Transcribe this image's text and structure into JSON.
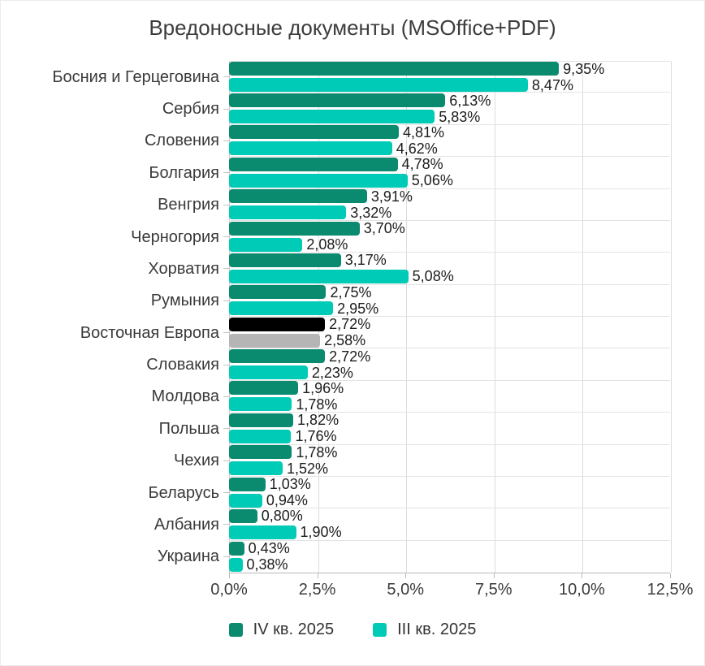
{
  "page": {
    "background": "#ffffff",
    "border_color": "#ececec",
    "grid_color": "#dcdcdc",
    "axis_color": "#b9b9b9",
    "text_color": "#3a3a3a"
  },
  "chart_data": {
    "type": "bar",
    "orientation": "horizontal",
    "grouped": true,
    "title": "Вредоносные документы (MSOffice+PDF)",
    "xlabel": "",
    "ylabel": "",
    "xlim": [
      0,
      12.5
    ],
    "grid": true,
    "legend_position": "bottom",
    "series": [
      {
        "name": "IV кв. 2025",
        "color": "#0a8a6e"
      },
      {
        "name": "III кв. 2025",
        "color": "#00cbb7"
      }
    ],
    "highlight_colors": [
      "#000000",
      "#b5b5b5"
    ],
    "x_ticks": [
      {
        "value": 0,
        "label": "0,0%"
      },
      {
        "value": 2.5,
        "label": "2,5%"
      },
      {
        "value": 5,
        "label": "5,0%"
      },
      {
        "value": 7.5,
        "label": "7,5%"
      },
      {
        "value": 10,
        "label": "10,0%"
      },
      {
        "value": 12.5,
        "label": "12,5%"
      }
    ],
    "rows": [
      {
        "category": "Босния и Герцеговина",
        "values": [
          9.35,
          8.47
        ],
        "labels": [
          "9,35%",
          "8,47%"
        ]
      },
      {
        "category": "Сербия",
        "values": [
          6.13,
          5.83
        ],
        "labels": [
          "6,13%",
          "5,83%"
        ]
      },
      {
        "category": "Словения",
        "values": [
          4.81,
          4.62
        ],
        "labels": [
          "4,81%",
          "4,62%"
        ]
      },
      {
        "category": "Болгария",
        "values": [
          4.78,
          5.06
        ],
        "labels": [
          "4,78%",
          "5,06%"
        ]
      },
      {
        "category": "Венгрия",
        "values": [
          3.91,
          3.32
        ],
        "labels": [
          "3,91%",
          "3,32%"
        ]
      },
      {
        "category": "Черногория",
        "values": [
          3.7,
          2.08
        ],
        "labels": [
          "3,70%",
          "2,08%"
        ]
      },
      {
        "category": "Хорватия",
        "values": [
          3.17,
          5.08
        ],
        "labels": [
          "3,17%",
          "5,08%"
        ]
      },
      {
        "category": "Румыния",
        "values": [
          2.75,
          2.95
        ],
        "labels": [
          "2,75%",
          "2,95%"
        ]
      },
      {
        "category": "Восточная Европа",
        "values": [
          2.72,
          2.58
        ],
        "labels": [
          "2,72%",
          "2,58%"
        ],
        "highlight": true
      },
      {
        "category": "Словакия",
        "values": [
          2.72,
          2.23
        ],
        "labels": [
          "2,72%",
          "2,23%"
        ]
      },
      {
        "category": "Молдова",
        "values": [
          1.96,
          1.78
        ],
        "labels": [
          "1,96%",
          "1,78%"
        ]
      },
      {
        "category": "Польша",
        "values": [
          1.82,
          1.76
        ],
        "labels": [
          "1,82%",
          "1,76%"
        ]
      },
      {
        "category": "Чехия",
        "values": [
          1.78,
          1.52
        ],
        "labels": [
          "1,78%",
          "1,52%"
        ]
      },
      {
        "category": "Беларусь",
        "values": [
          1.03,
          0.94
        ],
        "labels": [
          "1,03%",
          "0,94%"
        ]
      },
      {
        "category": "Албания",
        "values": [
          0.8,
          1.9
        ],
        "labels": [
          "0,80%",
          "1,90%"
        ]
      },
      {
        "category": "Украина",
        "values": [
          0.43,
          0.38
        ],
        "labels": [
          "0,43%",
          "0,38%"
        ]
      }
    ]
  }
}
